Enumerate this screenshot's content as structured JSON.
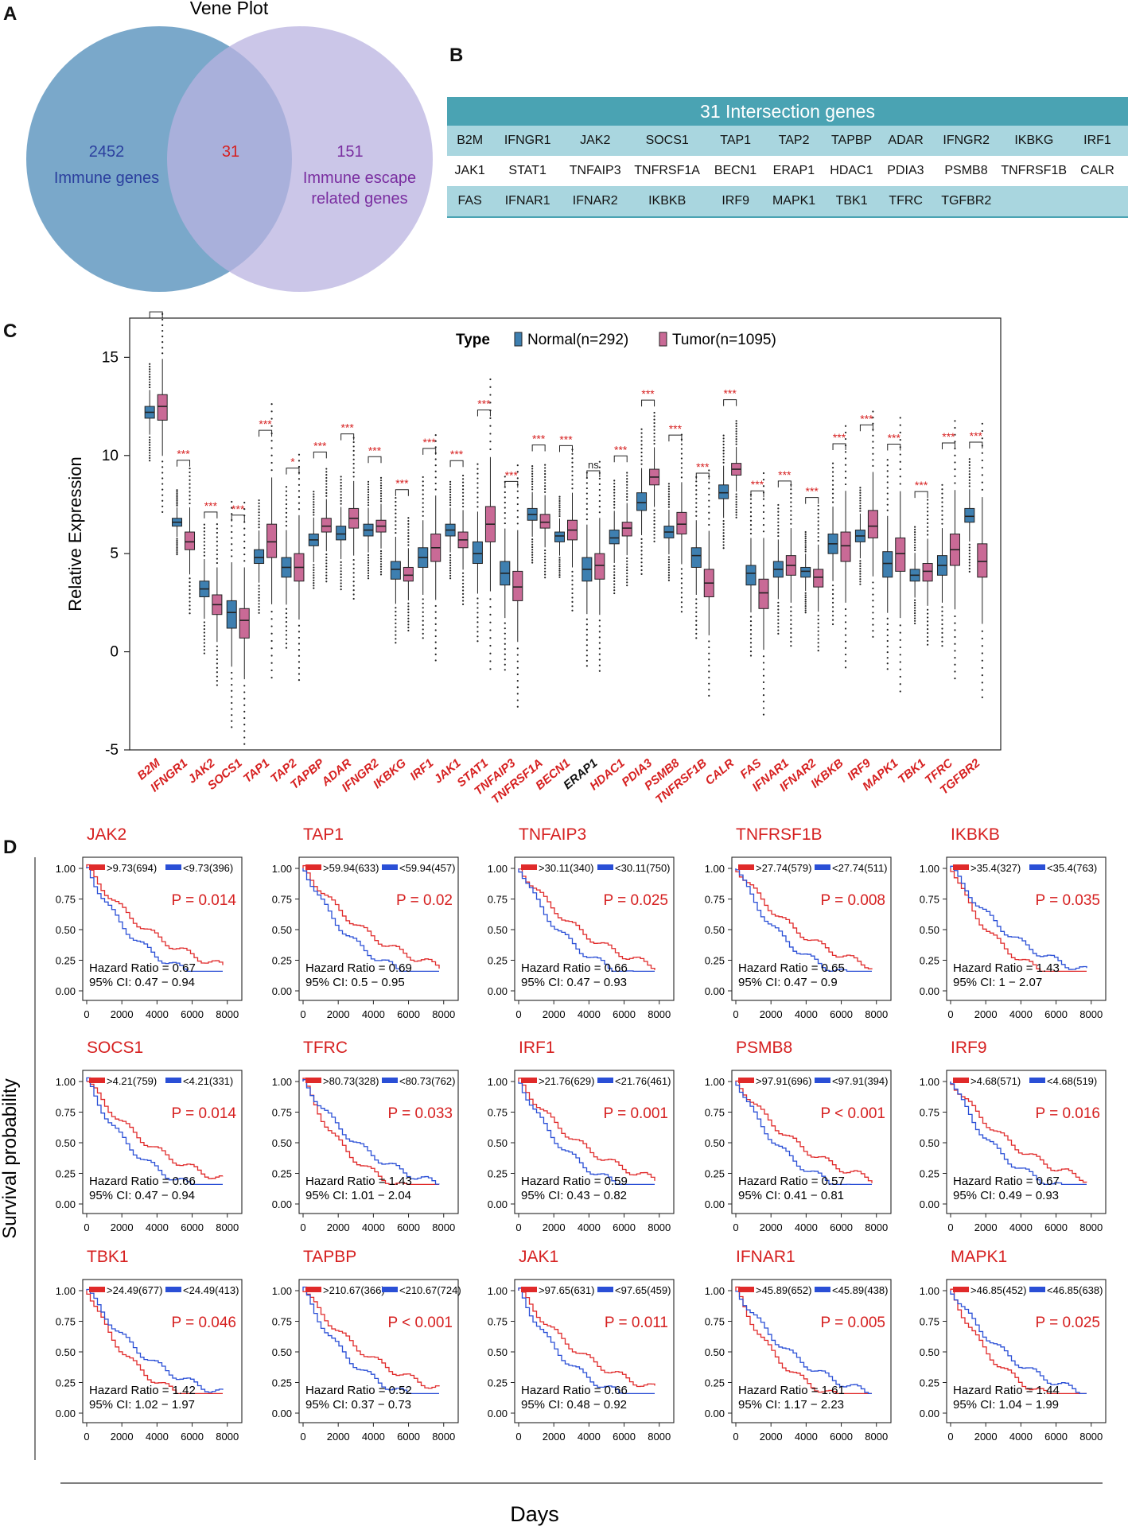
{
  "panel_labels": {
    "a": "A",
    "b": "B",
    "c": "C",
    "d": "D"
  },
  "venn": {
    "title": "Vene Plot",
    "left_count": "2452",
    "left_label": "Immune genes",
    "overlap_count": "31",
    "right_count": "151",
    "right_label_line1": "Immune escape",
    "right_label_line2": "related genes",
    "colors": {
      "left": "#6c9fc4",
      "right": "#b9b3e0",
      "left_text": "#2b3f9e",
      "overlap_text": "#d62020",
      "right_text": "#7a2ea0"
    }
  },
  "gene_table": {
    "title": "31 Intersection genes",
    "rows": [
      [
        "B2M",
        "IFNGR1",
        "JAK2",
        "SOCS1",
        "TAP1",
        "TAP2",
        "TAPBP",
        "ADAR",
        "IFNGR2",
        "IKBKG",
        "IRF1"
      ],
      [
        "JAK1",
        "STAT1",
        "TNFAIP3",
        "TNFRSF1A",
        "BECN1",
        "ERAP1",
        "HDAC1",
        "PDIA3",
        "PSMB8",
        "TNFRSF1B",
        "CALR"
      ],
      [
        "FAS",
        "IFNAR1",
        "IFNAR2",
        "IKBKB",
        "IRF9",
        "MAPK1",
        "TBK1",
        "TFRC",
        "TGFBR2",
        "",
        ""
      ]
    ]
  },
  "chart_data": [
    {
      "type": "box",
      "panel": "C",
      "ylabel": "Relative Expression",
      "ylim": [
        -5,
        17
      ],
      "yticks": [
        -5,
        0,
        5,
        10,
        15
      ],
      "legend": {
        "title": "Type",
        "entries": [
          "Normal(n=292)",
          "Tumor(n=1095)"
        ],
        "colors": [
          "#3e7fb0",
          "#c96a96"
        ]
      },
      "genes": [
        "B2M",
        "IFNGR1",
        "JAK2",
        "SOCS1",
        "TAP1",
        "TAP2",
        "TAPBP",
        "ADAR",
        "IFNGR2",
        "IKBKG",
        "IRF1",
        "JAK1",
        "STAT1",
        "TNFAIP3",
        "TNFRSF1A",
        "BECN1",
        "ERAP1",
        "HDAC1",
        "PDIA3",
        "PSMB8",
        "TNFRSF1B",
        "CALR",
        "FAS",
        "IFNAR1",
        "IFNAR2",
        "IKBKB",
        "IRF9",
        "MAPK1",
        "TBK1",
        "TFRC",
        "TGFBR2"
      ],
      "significance": [
        "***",
        "***",
        "***",
        "***",
        "***",
        "*",
        "***",
        "***",
        "***",
        "***",
        "***",
        "***",
        "***",
        "***",
        "***",
        "***",
        "ns",
        "***",
        "***",
        "***",
        "***",
        "***",
        "***",
        "***",
        "***",
        "***",
        "***",
        "***",
        "***",
        "***",
        "***"
      ],
      "normal_median": [
        12.2,
        6.6,
        3.2,
        2.0,
        4.8,
        4.3,
        5.7,
        6.0,
        6.2,
        4.2,
        4.8,
        6.2,
        5.0,
        4.0,
        7.0,
        5.9,
        4.2,
        5.8,
        7.6,
        6.1,
        4.9,
        8.1,
        4.0,
        4.2,
        4.1,
        5.5,
        5.9,
        4.5,
        3.9,
        4.4,
        6.9
      ],
      "normal_q": [
        [
          11.9,
          12.5
        ],
        [
          6.4,
          6.8
        ],
        [
          2.8,
          3.6
        ],
        [
          1.2,
          2.6
        ],
        [
          4.5,
          5.2
        ],
        [
          3.8,
          4.8
        ],
        [
          5.4,
          6.0
        ],
        [
          5.7,
          6.4
        ],
        [
          5.9,
          6.5
        ],
        [
          3.7,
          4.6
        ],
        [
          4.3,
          5.3
        ],
        [
          5.9,
          6.5
        ],
        [
          4.5,
          5.6
        ],
        [
          3.4,
          4.6
        ],
        [
          6.7,
          7.3
        ],
        [
          5.6,
          6.1
        ],
        [
          3.6,
          4.8
        ],
        [
          5.5,
          6.2
        ],
        [
          7.2,
          8.1
        ],
        [
          5.8,
          6.4
        ],
        [
          4.3,
          5.3
        ],
        [
          7.8,
          8.5
        ],
        [
          3.4,
          4.4
        ],
        [
          3.8,
          4.6
        ],
        [
          3.8,
          4.3
        ],
        [
          5.0,
          6.0
        ],
        [
          5.6,
          6.2
        ],
        [
          3.8,
          5.1
        ],
        [
          3.6,
          4.2
        ],
        [
          3.9,
          4.9
        ],
        [
          6.6,
          7.3
        ]
      ],
      "tumor_median": [
        12.5,
        5.6,
        2.4,
        1.6,
        5.6,
        4.3,
        6.4,
        6.8,
        6.4,
        3.9,
        5.3,
        5.7,
        6.5,
        3.3,
        6.6,
        6.2,
        4.4,
        6.3,
        8.9,
        6.5,
        3.5,
        9.3,
        3.0,
        4.4,
        3.8,
        5.4,
        6.4,
        5.0,
        4.1,
        5.2,
        4.6
      ],
      "tumor_q": [
        [
          11.8,
          13.1
        ],
        [
          5.2,
          6.1
        ],
        [
          1.9,
          2.9
        ],
        [
          0.7,
          2.2
        ],
        [
          4.8,
          6.5
        ],
        [
          3.6,
          5.0
        ],
        [
          6.1,
          6.8
        ],
        [
          6.3,
          7.3
        ],
        [
          6.1,
          6.7
        ],
        [
          3.6,
          4.3
        ],
        [
          4.6,
          6.0
        ],
        [
          5.3,
          6.1
        ],
        [
          5.6,
          7.4
        ],
        [
          2.6,
          4.1
        ],
        [
          6.3,
          7.0
        ],
        [
          5.7,
          6.7
        ],
        [
          3.7,
          5.0
        ],
        [
          5.9,
          6.6
        ],
        [
          8.5,
          9.3
        ],
        [
          6.0,
          7.1
        ],
        [
          2.8,
          4.2
        ],
        [
          9.0,
          9.6
        ],
        [
          2.2,
          3.7
        ],
        [
          3.9,
          4.9
        ],
        [
          3.3,
          4.2
        ],
        [
          4.6,
          6.1
        ],
        [
          5.8,
          7.2
        ],
        [
          4.1,
          5.8
        ],
        [
          3.6,
          4.5
        ],
        [
          4.4,
          6.0
        ],
        [
          3.8,
          5.5
        ]
      ]
    },
    {
      "type": "line",
      "panel": "D",
      "subtype": "kaplan-meier",
      "ylabel": "Survival probability",
      "xlabel": "Days",
      "xticks": [
        0,
        2000,
        4000,
        6000,
        8000
      ],
      "yticks": [
        "0.00",
        "0.25",
        "0.50",
        "0.75",
        "1.00"
      ],
      "series_colors": [
        "#e02a2a",
        "#2a4fd6"
      ],
      "plots": [
        {
          "gene": "JAK2",
          "high": ">9.73(694)",
          "low": "<9.73(396)",
          "p": "P = 0.014",
          "hr": "Hazard Ratio = 0.67",
          "ci": "95% CI: 0.47 − 0.94"
        },
        {
          "gene": "TAP1",
          "high": ">59.94(633)",
          "low": "<59.94(457)",
          "p": "P = 0.02",
          "hr": "Hazard Ratio = 0.69",
          "ci": "95% CI: 0.5 − 0.95"
        },
        {
          "gene": "TNFAIP3",
          "high": ">30.11(340)",
          "low": "<30.11(750)",
          "p": "P = 0.025",
          "hr": "Hazard Ratio = 0.66",
          "ci": "95% CI: 0.47 − 0.93"
        },
        {
          "gene": "TNFRSF1B",
          "high": ">27.74(579)",
          "low": "<27.74(511)",
          "p": "P = 0.008",
          "hr": "Hazard Ratio = 0.65",
          "ci": "95% CI: 0.47 − 0.9"
        },
        {
          "gene": "IKBKB",
          "high": ">35.4(327)",
          "low": "<35.4(763)",
          "p": "P = 0.035",
          "hr": "Hazard Ratio = 1.43",
          "ci": "95% CI: 1 − 2.07"
        },
        {
          "gene": "SOCS1",
          "high": ">4.21(759)",
          "low": "<4.21(331)",
          "p": "P = 0.014",
          "hr": "Hazard Ratio = 0.66",
          "ci": "95% CI: 0.47 − 0.94"
        },
        {
          "gene": "TFRC",
          "high": ">80.73(328)",
          "low": "<80.73(762)",
          "p": "P = 0.033",
          "hr": "Hazard Ratio = 1.43",
          "ci": "95% CI: 1.01 − 2.04"
        },
        {
          "gene": "IRF1",
          "high": ">21.76(629)",
          "low": "<21.76(461)",
          "p": "P = 0.001",
          "hr": "Hazard Ratio = 0.59",
          "ci": "95% CI: 0.43 − 0.82"
        },
        {
          "gene": "PSMB8",
          "high": ">97.91(696)",
          "low": "<97.91(394)",
          "p": "P < 0.001",
          "hr": "Hazard Ratio = 0.57",
          "ci": "95% CI: 0.41 − 0.81"
        },
        {
          "gene": "IRF9",
          "high": ">4.68(571)",
          "low": "<4.68(519)",
          "p": "P = 0.016",
          "hr": "Hazard Ratio = 0.67",
          "ci": "95% CI: 0.49 − 0.93"
        },
        {
          "gene": "TBK1",
          "high": ">24.49(677)",
          "low": "<24.49(413)",
          "p": "P = 0.046",
          "hr": "Hazard Ratio = 1.42",
          "ci": "95% CI: 1.02 − 1.97"
        },
        {
          "gene": "TAPBP",
          "high": ">210.67(366)",
          "low": "<210.67(724)",
          "p": "P < 0.001",
          "hr": "Hazard Ratio = 0.52",
          "ci": "95% CI: 0.37 − 0.73"
        },
        {
          "gene": "JAK1",
          "high": ">97.65(631)",
          "low": "<97.65(459)",
          "p": "P = 0.011",
          "hr": "Hazard Ratio = 0.66",
          "ci": "95% CI: 0.48 − 0.92"
        },
        {
          "gene": "IFNAR1",
          "high": ">45.89(652)",
          "low": "<45.89(438)",
          "p": "P = 0.005",
          "hr": "Hazard Ratio = 1.61",
          "ci": "95% CI: 1.17 − 2.23"
        },
        {
          "gene": "MAPK1",
          "high": ">46.85(452)",
          "low": "<46.85(638)",
          "p": "P = 0.025",
          "hr": "Hazard Ratio = 1.44",
          "ci": "95% CI: 1.04 − 1.99"
        }
      ]
    }
  ]
}
